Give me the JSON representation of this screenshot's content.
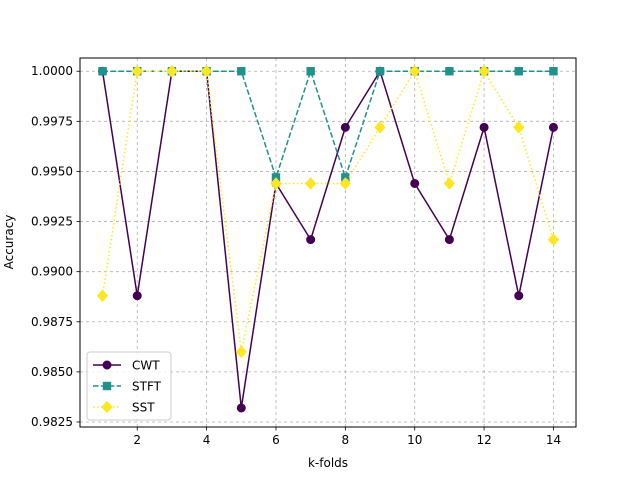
{
  "chart_data": {
    "type": "line",
    "title": "",
    "xlabel": "k-folds",
    "ylabel": "Accuracy",
    "xlim": [
      0.35,
      14.65
    ],
    "ylim": [
      0.98225,
      1.00066
    ],
    "x_ticks": [
      2,
      4,
      6,
      8,
      10,
      12,
      14
    ],
    "y_ticks": [
      0.9825,
      0.985,
      0.9875,
      0.99,
      0.9925,
      0.995,
      0.9975,
      1.0
    ],
    "y_tick_labels": [
      "0.9825",
      "0.9850",
      "0.9875",
      "0.9900",
      "0.9925",
      "0.9950",
      "0.9975",
      "1.0000"
    ],
    "grid": true,
    "legend_position": "lower-left",
    "x": [
      1,
      2,
      3,
      4,
      5,
      6,
      7,
      8,
      9,
      10,
      11,
      12,
      13,
      14
    ],
    "series": [
      {
        "name": "CWT",
        "color": "#440154",
        "line_style": "solid",
        "marker": "circle",
        "values": [
          1.0,
          0.9888,
          1.0,
          1.0,
          0.9832,
          0.9944,
          0.9916,
          0.9972,
          1.0,
          0.9944,
          0.9916,
          0.9972,
          0.9888,
          0.9972
        ]
      },
      {
        "name": "STFT",
        "color": "#21918c",
        "line_style": "dashed",
        "marker": "square",
        "values": [
          1.0,
          1.0,
          1.0,
          1.0,
          1.0,
          0.9947,
          1.0,
          0.9947,
          1.0,
          1.0,
          1.0,
          1.0,
          1.0,
          1.0
        ]
      },
      {
        "name": "SST",
        "color": "#fde725",
        "line_style": "dotted",
        "marker": "diamond",
        "values": [
          0.9888,
          1.0,
          1.0,
          1.0,
          0.986,
          0.9944,
          0.9944,
          0.9944,
          0.9972,
          1.0,
          0.9944,
          1.0,
          0.9972,
          0.9916
        ]
      }
    ]
  }
}
